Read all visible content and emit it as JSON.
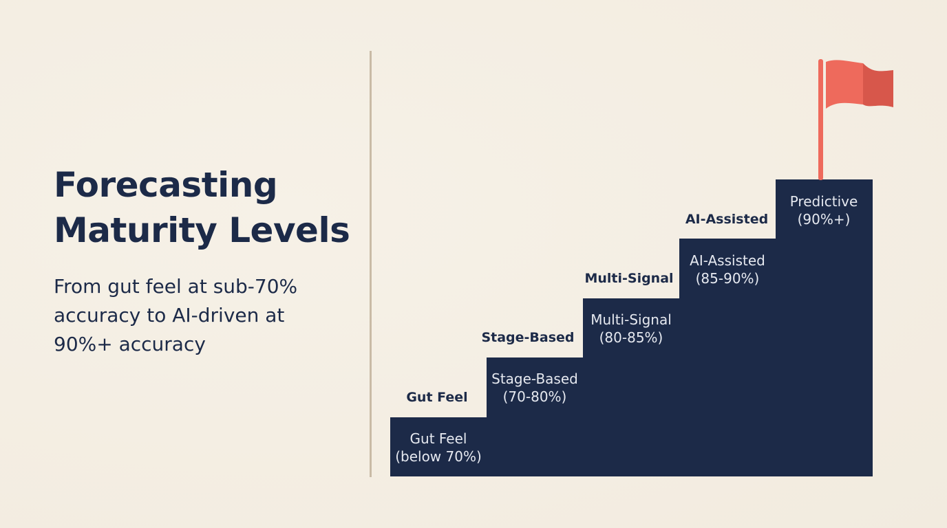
{
  "title_lines": [
    "Forecasting",
    "Maturity Levels"
  ],
  "subtitle_lines": [
    "From gut feel at sub-70%",
    "accuracy to AI-driven at",
    "90%+ accuracy"
  ],
  "colors": {
    "background": "#f5efe4",
    "step_fill": "#1c2a48",
    "flag": "#ee6a5c",
    "divider": "#c9bba6"
  },
  "steps": [
    {
      "label": "Gut Feel",
      "inner": [
        "Gut Feel",
        "(below 70%)"
      ]
    },
    {
      "label": "Stage-Based",
      "inner": [
        "Stage-Based",
        "(70-80%)"
      ]
    },
    {
      "label": "Multi-Signal",
      "inner": [
        "Multi-Signal",
        "(80-85%)"
      ]
    },
    {
      "label": "AI-Assisted",
      "inner": [
        "AI-Assisted",
        "(85-90%)"
      ]
    },
    {
      "label": "",
      "inner": [
        "Predictive",
        "(90%+)"
      ]
    }
  ],
  "icons": {
    "flag": "flag-icon"
  }
}
